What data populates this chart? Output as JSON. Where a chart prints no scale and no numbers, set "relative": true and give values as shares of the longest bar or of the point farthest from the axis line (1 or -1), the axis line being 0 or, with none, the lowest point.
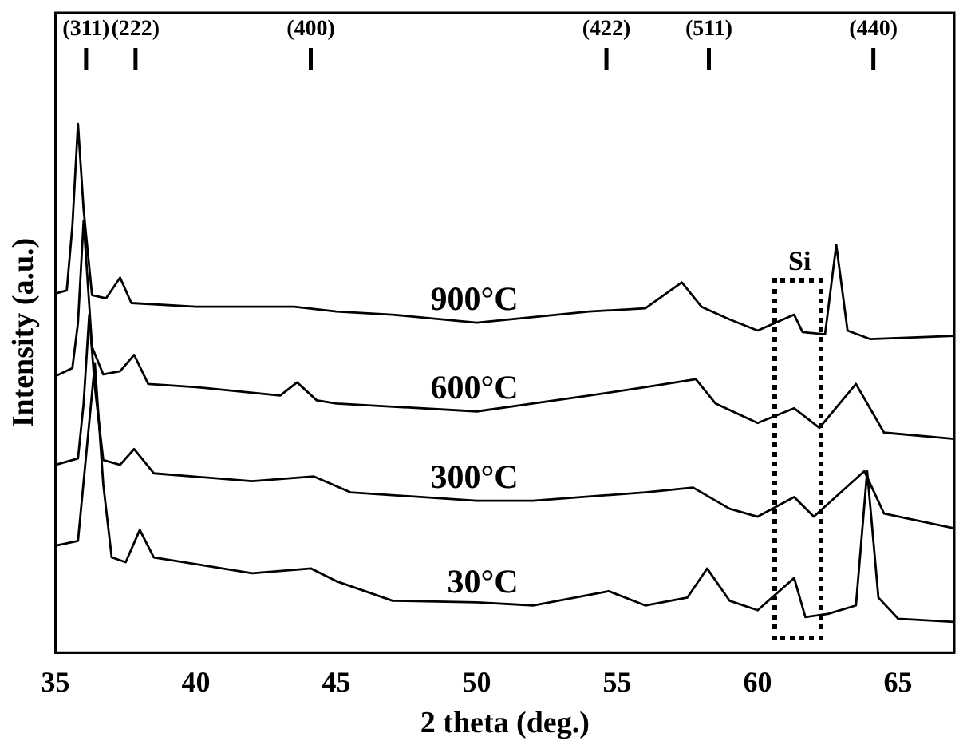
{
  "chart_data": {
    "type": "line",
    "relative": true,
    "xlabel": "2 theta (deg.)",
    "ylabel": "Intensity (a.u.)",
    "xlim": [
      35,
      67
    ],
    "xticks": [
      35,
      40,
      45,
      50,
      55,
      60,
      65
    ],
    "grid": false,
    "legend": false,
    "marker": "none",
    "annotations": [
      "(311)",
      "(222)",
      "(400)",
      "(422)",
      "(511)",
      "(440)",
      "Si"
    ],
    "series": [
      {
        "name": "900°C",
        "color": "#000000",
        "x": [
          35,
          35.4,
          35.6,
          35.8,
          36.0,
          36.3,
          36.8,
          37.3,
          37.7,
          40,
          43.5,
          45,
          47,
          50,
          54,
          56,
          57.3,
          58,
          59,
          60,
          61.3,
          61.6,
          62.4,
          62.8,
          63.2,
          64,
          67
        ],
        "values": [
          0.679,
          0.685,
          0.807,
          1.0,
          0.838,
          0.676,
          0.67,
          0.709,
          0.661,
          0.654,
          0.654,
          0.645,
          0.639,
          0.624,
          0.645,
          0.651,
          0.7,
          0.654,
          0.63,
          0.609,
          0.639,
          0.606,
          0.602,
          0.771,
          0.609,
          0.593,
          0.599
        ]
      },
      {
        "name": "600°C",
        "color": "#000000",
        "x": [
          35,
          35.6,
          35.8,
          36.0,
          36.3,
          36.7,
          37.3,
          37.8,
          38.3,
          40,
          43,
          43.6,
          44.3,
          45,
          50,
          54,
          56,
          57.8,
          58.5,
          60,
          61.3,
          62.2,
          63.5,
          64.5,
          67
        ],
        "values": [
          0.523,
          0.538,
          0.624,
          0.817,
          0.578,
          0.526,
          0.532,
          0.563,
          0.508,
          0.502,
          0.486,
          0.511,
          0.477,
          0.471,
          0.456,
          0.486,
          0.502,
          0.517,
          0.471,
          0.434,
          0.462,
          0.425,
          0.508,
          0.416,
          0.404
        ]
      },
      {
        "name": "300°C",
        "color": "#000000",
        "x": [
          35,
          35.8,
          36.0,
          36.2,
          36.4,
          36.7,
          37.3,
          37.8,
          38.5,
          42,
          44.2,
          45.5,
          50,
          52,
          56,
          57.7,
          59,
          60,
          61.3,
          62,
          63.8,
          64.5,
          67
        ],
        "values": [
          0.355,
          0.367,
          0.471,
          0.639,
          0.502,
          0.364,
          0.355,
          0.385,
          0.339,
          0.324,
          0.333,
          0.303,
          0.287,
          0.287,
          0.303,
          0.312,
          0.272,
          0.257,
          0.294,
          0.257,
          0.343,
          0.263,
          0.235
        ]
      },
      {
        "name": "30°C",
        "color": "#000000",
        "x": [
          35,
          35.8,
          36.1,
          36.4,
          36.7,
          37,
          37.5,
          38,
          38.5,
          42,
          44.1,
          45,
          47,
          50,
          52,
          54.7,
          56,
          57.5,
          58.2,
          59,
          60,
          61.3,
          61.7,
          62.5,
          63.5,
          63.9,
          64.3,
          65,
          67
        ],
        "values": [
          0.202,
          0.211,
          0.379,
          0.547,
          0.318,
          0.18,
          0.171,
          0.232,
          0.18,
          0.15,
          0.159,
          0.135,
          0.098,
          0.095,
          0.089,
          0.116,
          0.089,
          0.104,
          0.159,
          0.098,
          0.08,
          0.141,
          0.067,
          0.073,
          0.089,
          0.343,
          0.104,
          0.064,
          0.058
        ]
      }
    ]
  }
}
